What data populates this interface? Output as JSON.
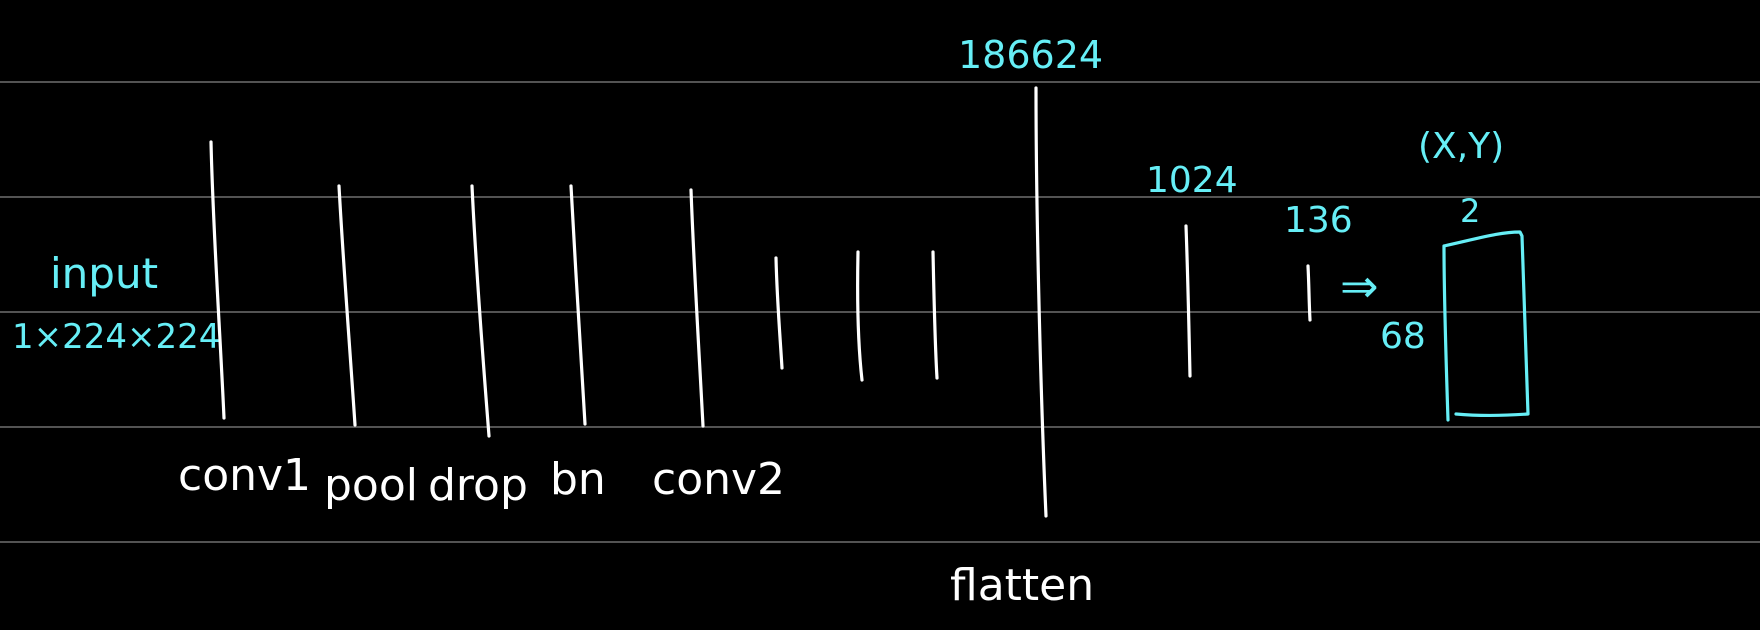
{
  "input": {
    "label": "input",
    "shape": "1×224×224"
  },
  "layers": [
    {
      "label": "conv1"
    },
    {
      "label": "pool"
    },
    {
      "label": "drop"
    },
    {
      "label": "bn"
    },
    {
      "label": "conv2"
    }
  ],
  "flatten": {
    "label": "flatten",
    "size": "186624"
  },
  "dense": [
    {
      "size": "1024"
    },
    {
      "size": "136"
    }
  ],
  "output": {
    "arrow": "⇒",
    "height_label": "68",
    "width_label": "2",
    "coord_label": "(X,Y)"
  },
  "colors": {
    "background": "#000000",
    "ink_white": "#ffffff",
    "ink_cyan": "#66eef6",
    "ruled_lines": "#6f6f6f"
  }
}
